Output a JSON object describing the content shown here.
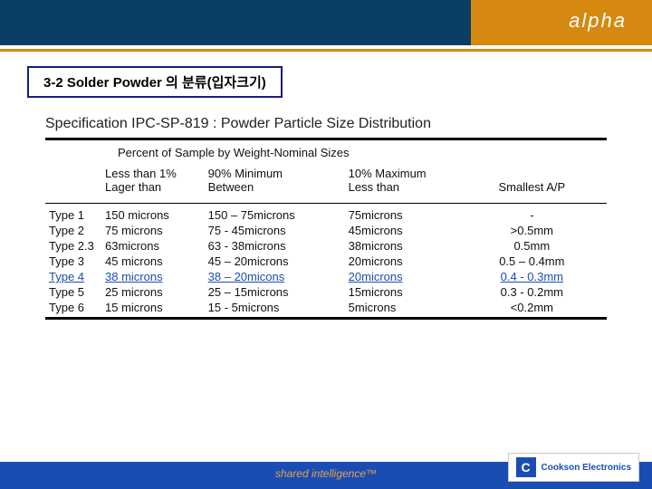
{
  "header": {
    "brand": "alpha"
  },
  "title_box": "3-2 Solder Powder 의 분류(입자크기)",
  "spec_title": "Specification IPC-SP-819 : Powder Particle Size Distribution",
  "sub_header": "Percent of Sample by Weight-Nominal Sizes",
  "columns": {
    "a_line1": "Less than 1%",
    "a_line2": "Lager than",
    "b_line1": "90% Minimum",
    "b_line2": "Between",
    "c_line1": "10% Maximum",
    "c_line2": "Less than",
    "d_line1": "Smallest A/P"
  },
  "rows": [
    {
      "type": "Type 1",
      "a": "150 microns",
      "b": "150 – 75microns",
      "c": "75microns",
      "d": "-",
      "hl": false
    },
    {
      "type": "Type 2",
      "a": "  75 microns",
      "b": "75  - 45microns",
      "c": "45microns",
      "d": ">0.5mm",
      "hl": false
    },
    {
      "type": "Type 2.3",
      "a": "63microns",
      "b": "63  - 38microns",
      "c": "38microns",
      "d": "0.5mm",
      "hl": false
    },
    {
      "type": "Type 3",
      "a": "45 microns",
      "b": "45 – 20microns",
      "c": "20microns",
      "d": "0.5 – 0.4mm",
      "hl": false
    },
    {
      "type": "Type 4",
      "a": "38 microns",
      "b": "38 – 20micons",
      "c": "20microns",
      "d": "0.4 -  0.3mm",
      "hl": true
    },
    {
      "type": "Type 5",
      "a": "25 microns",
      "b": "25 – 15microns",
      "c": "15microns",
      "d": "0.3 -  0.2mm",
      "hl": false
    },
    {
      "type": "Type 6",
      "a": "15 microns",
      "b": "15  -   5microns",
      "c": "5microns",
      "d": "<0.2mm",
      "hl": false
    }
  ],
  "footer": {
    "tagline": "shared intelligence™",
    "logo_letter": "C",
    "logo_text": "Cookson Electronics"
  },
  "colors": {
    "navy": "#0a3d62",
    "orange": "#d68910",
    "blue": "#1a4db3"
  }
}
